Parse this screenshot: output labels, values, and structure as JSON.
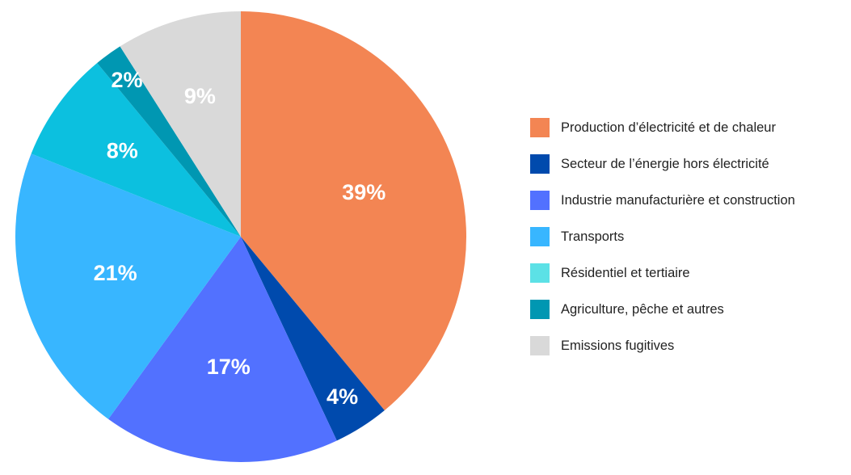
{
  "chart_data": {
    "type": "pie",
    "title": "",
    "legend_position": "right",
    "start_angle_deg": 0,
    "direction": "clockwise",
    "slices": [
      {
        "name": "Production d’électricité et de chaleur",
        "value": 39,
        "label": "39%",
        "color": "#F38553"
      },
      {
        "name": "Secteur de l’énergie hors électricité",
        "value": 4,
        "label": "4%",
        "color": "#004AAD"
      },
      {
        "name": "Industrie manufacturière et construction",
        "value": 17,
        "label": "17%",
        "color": "#5271FF"
      },
      {
        "name": "Transports",
        "value": 21,
        "label": "21%",
        "color": "#38B6FF"
      },
      {
        "name": "Résidentiel et tertiaire",
        "value": 8,
        "label": "8%",
        "color": "#0CC0DF"
      },
      {
        "name": "Agriculture, pêche et autres",
        "value": 2,
        "label": "2%",
        "color": "#0097B2"
      },
      {
        "name": "Emissions fugitives",
        "value": 9,
        "label": "9%",
        "color": "#D9D9D9"
      }
    ],
    "legend": [
      {
        "label": "Production d’électricité et de chaleur",
        "color": "#F38553"
      },
      {
        "label": "Secteur de l’énergie hors électricité",
        "color": "#004AAD"
      },
      {
        "label": "Industrie manufacturière et construction",
        "color": "#5271FF"
      },
      {
        "label": "Transports",
        "color": "#38B6FF"
      },
      {
        "label": "Résidentiel et tertiaire",
        "color": "#5CE1E6"
      },
      {
        "label": "Agriculture, pêche et autres",
        "color": "#0097B2"
      },
      {
        "label": "Emissions fugitives",
        "color": "#D9D9D9"
      }
    ]
  }
}
